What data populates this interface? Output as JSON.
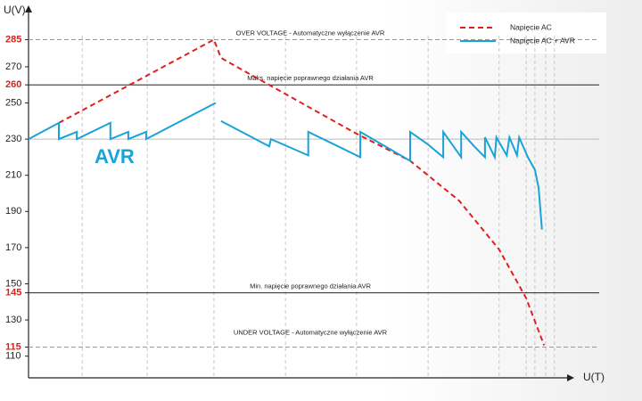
{
  "chart_data": {
    "type": "line",
    "y_label": "U(V)",
    "x_label": "U(T)",
    "annotation": "AVR",
    "annotation_color": "#1aa3d9",
    "xlim": [
      0,
      100
    ],
    "ylim": [
      98,
      302
    ],
    "yticks": [
      110,
      130,
      150,
      170,
      190,
      210,
      230,
      250,
      270
    ],
    "yticks_highlight": [
      115,
      145,
      260,
      285
    ],
    "highlight_color": "#e0201c",
    "xgrid": [
      9.9,
      21.9,
      34.2,
      47.4,
      60.5,
      73.7,
      86.8,
      91.8,
      93.4,
      95.4,
      97.0
    ],
    "reference_lines": [
      {
        "value": 285,
        "label": "OVER VOLTAGE - Automatyczne wyłączenie AVR",
        "style": "dashed"
      },
      {
        "value": 260,
        "label": "Maks. napięcie poprawnego działania AVR",
        "style": "solid"
      },
      {
        "value": 230,
        "style": "thin"
      },
      {
        "value": 145,
        "label": "Min. napięcie poprawnego działania AVR",
        "style": "solid"
      },
      {
        "value": 115,
        "label": "UNDER VOLTAGE - Automatyczne wyłączenie AVR",
        "style": "dashed"
      }
    ],
    "legend": "upper right",
    "series": [
      {
        "name": "Napięcie AC",
        "color": "#e0201c",
        "dash": true,
        "x": [
          5.6,
          34.2,
          35.5,
          37.8,
          60.5,
          70.4,
          79.4,
          86.8,
          91.8,
          95.1
        ],
        "values": [
          239,
          285,
          275,
          271,
          233,
          218,
          196,
          169,
          142,
          116
        ]
      },
      {
        "name": "Napięcie AC  + AVR",
        "color": "#1aa3d9",
        "dash": false,
        "x": [
          0,
          5.6,
          5.6,
          8.9,
          8.9,
          15.1,
          15.1,
          18.4,
          18.4,
          21.7,
          21.7,
          34.5,
          34.5,
          35.5,
          44.4,
          44.7,
          51.6,
          51.6,
          61.2,
          61.2,
          70.4,
          70.4,
          73.7,
          76.5,
          76.5,
          79.8,
          79.8,
          82.2,
          84.2,
          84.2,
          86.0,
          86.3,
          88.2,
          88.7,
          90.1,
          90.5,
          92.1,
          93.4,
          94.1,
          94.7
        ],
        "values": [
          230,
          239,
          230,
          234,
          230,
          239,
          230,
          234,
          230,
          234,
          230,
          250,
          null,
          240,
          226,
          230,
          221,
          234,
          220,
          234,
          218,
          234,
          227,
          220,
          234,
          220,
          234,
          226,
          220,
          231,
          220,
          231,
          221,
          231,
          221,
          231,
          220,
          213,
          203,
          180
        ]
      }
    ]
  }
}
